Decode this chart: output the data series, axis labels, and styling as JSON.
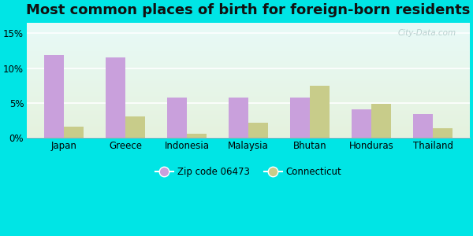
{
  "title": "Most common places of birth for foreign-born residents",
  "categories": [
    "Japan",
    "Greece",
    "Indonesia",
    "Malaysia",
    "Bhutan",
    "Honduras",
    "Thailand"
  ],
  "zip_values": [
    11.9,
    11.5,
    5.7,
    5.7,
    5.7,
    4.0,
    3.4
  ],
  "ct_values": [
    1.5,
    3.0,
    0.5,
    2.1,
    7.5,
    4.8,
    1.3
  ],
  "zip_color": "#c9a0dc",
  "ct_color": "#c8cc8a",
  "background_outer": "#00e5e5",
  "yticks": [
    0,
    5,
    10,
    15
  ],
  "ylim": [
    0,
    16.5
  ],
  "legend_zip": "Zip code 06473",
  "legend_ct": "Connecticut",
  "bar_width": 0.32,
  "title_fontsize": 13,
  "watermark": "City-Data.com"
}
